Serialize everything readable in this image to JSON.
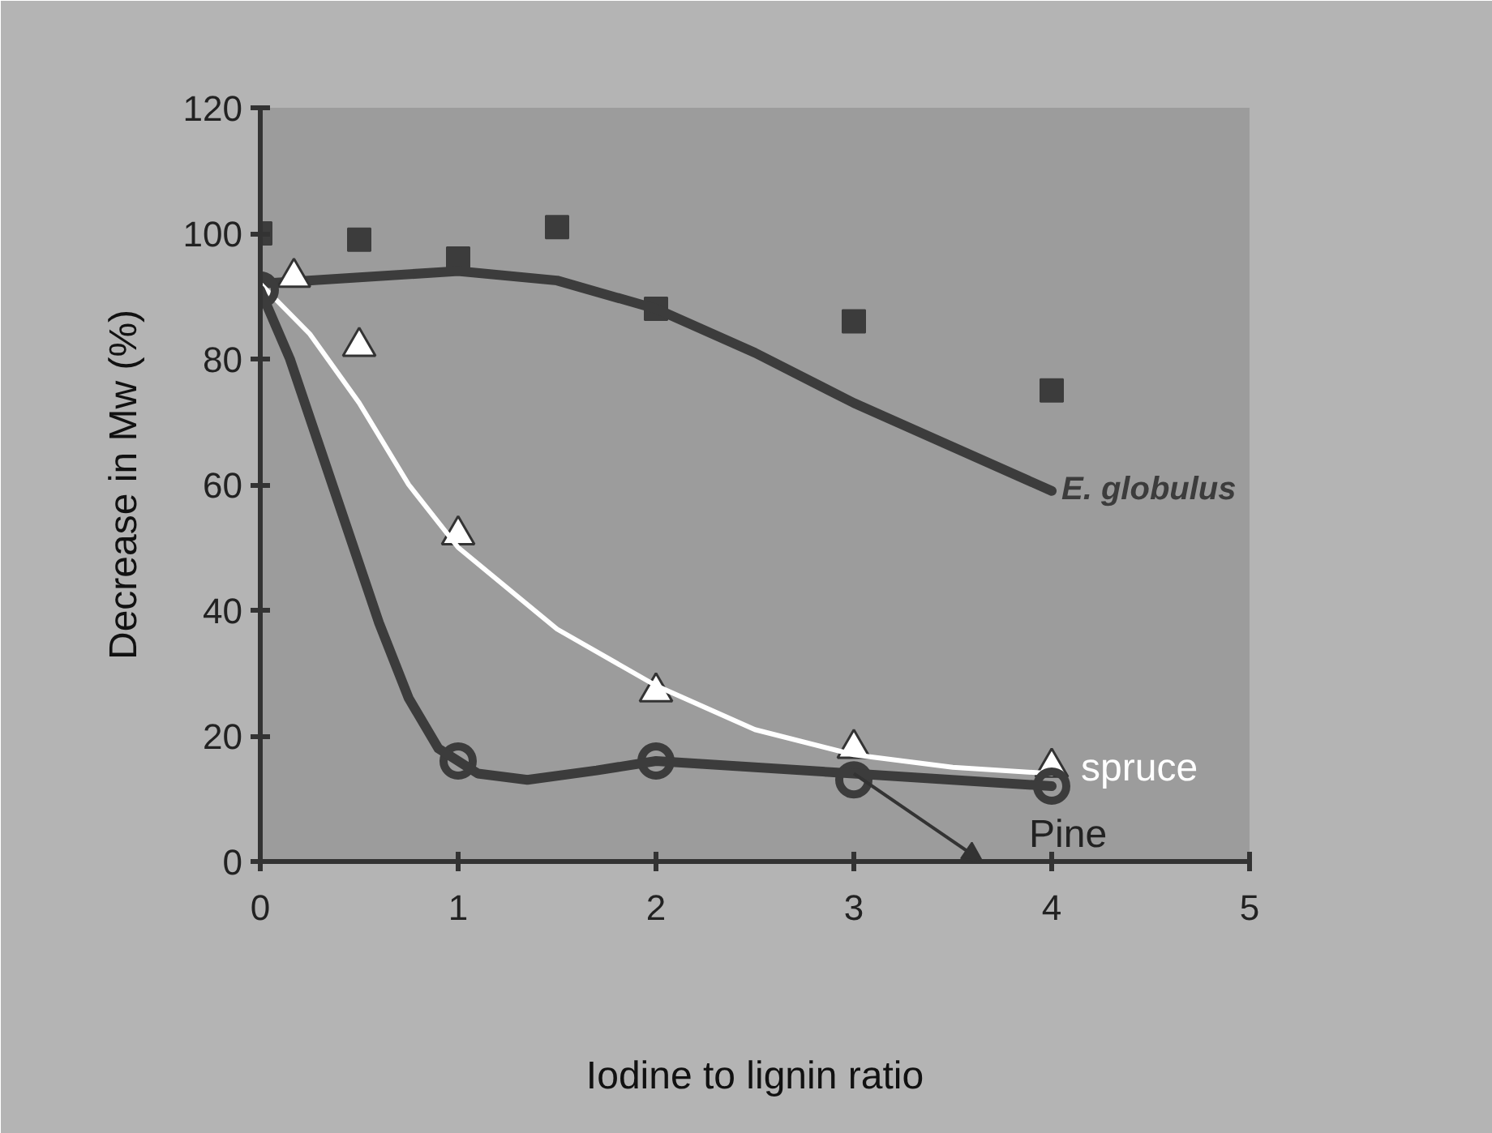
{
  "chart_data": {
    "type": "line",
    "xlabel": "Iodine to lignin ratio",
    "ylabel": "Decrease in Mw (%)",
    "xlim": [
      0,
      5
    ],
    "ylim": [
      0,
      120
    ],
    "xticks": [
      0,
      1,
      2,
      3,
      4,
      5
    ],
    "yticks": [
      0,
      20,
      40,
      60,
      80,
      100,
      120
    ],
    "grid": false,
    "series": [
      {
        "type": "scatter",
        "marker": "square",
        "color": "#3c3c3c",
        "x": [
          0,
          0.5,
          1,
          1.5,
          2,
          3,
          4
        ],
        "values": [
          100,
          99,
          96,
          101,
          88,
          86,
          75
        ]
      },
      {
        "name": "E. globulus",
        "color": "#3c3c3c",
        "x": [
          0,
          0.5,
          1,
          1.5,
          2,
          2.5,
          3,
          3.5,
          4
        ],
        "values": [
          92,
          93,
          94,
          92.5,
          88,
          81,
          73,
          66,
          59
        ]
      },
      {
        "type": "scatter",
        "marker": "triangle",
        "color": "#ffffff",
        "x": [
          0.17,
          0.5,
          1,
          2,
          3,
          4
        ],
        "values": [
          93,
          82,
          52,
          27,
          18,
          15
        ]
      },
      {
        "name": "spruce",
        "color": "#ffffff",
        "x": [
          0,
          0.25,
          0.5,
          0.75,
          1,
          1.5,
          2,
          2.5,
          3,
          3.5,
          4
        ],
        "values": [
          92,
          84,
          73,
          60,
          50,
          37,
          28,
          21,
          17,
          15,
          14
        ]
      },
      {
        "type": "scatter",
        "marker": "circle",
        "color": "#3c3c3c",
        "x": [
          0,
          1,
          2,
          3,
          4
        ],
        "values": [
          91,
          16,
          16,
          13,
          12
        ]
      },
      {
        "name": "Pine",
        "color": "#3c3c3c",
        "x": [
          0,
          0.15,
          0.3,
          0.45,
          0.6,
          0.75,
          0.9,
          1.1,
          1.35,
          1.7,
          2,
          3,
          4
        ],
        "values": [
          91,
          80,
          66,
          52,
          38,
          26,
          18,
          14,
          13,
          14.5,
          16,
          14,
          12
        ]
      }
    ]
  }
}
